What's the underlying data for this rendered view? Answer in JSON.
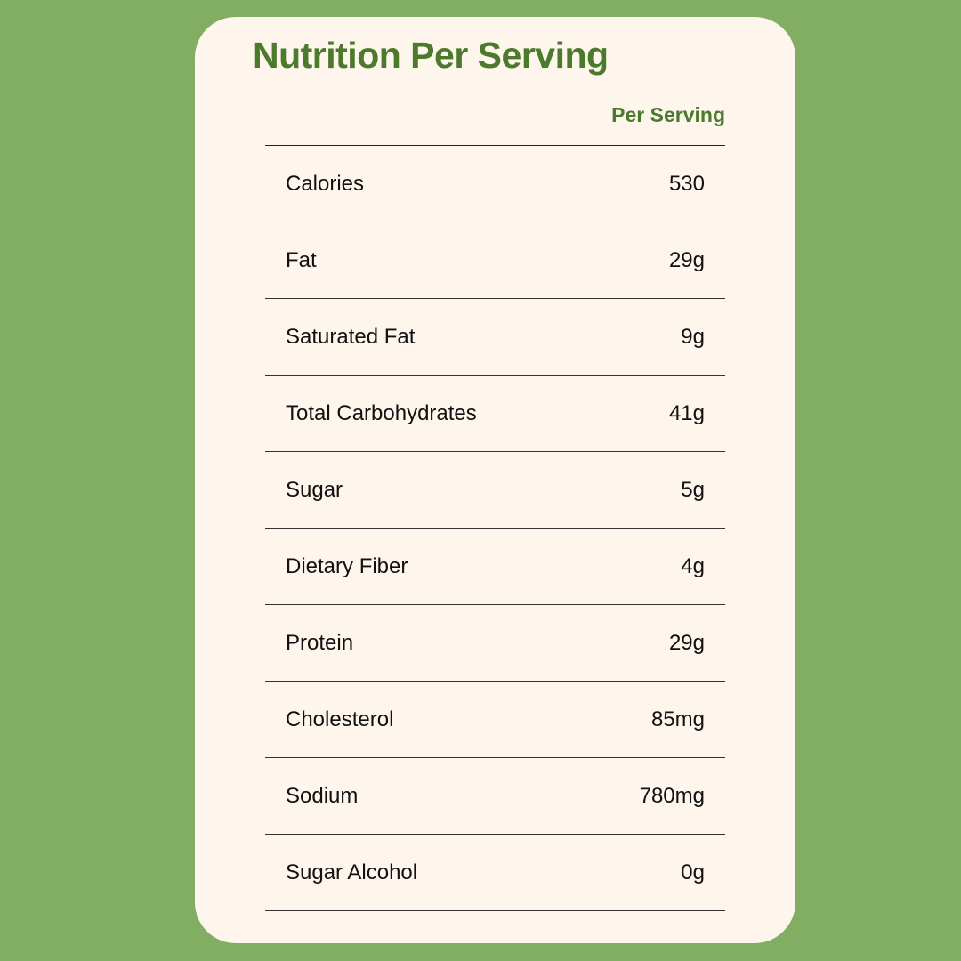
{
  "title": "Nutrition Per Serving",
  "column_header": "Per Serving",
  "rows": [
    {
      "label": "Calories",
      "value": "530"
    },
    {
      "label": "Fat",
      "value": "29g"
    },
    {
      "label": "Saturated Fat",
      "value": "9g"
    },
    {
      "label": "Total Carbohydrates",
      "value": "41g"
    },
    {
      "label": "Sugar",
      "value": "5g"
    },
    {
      "label": "Dietary Fiber",
      "value": "4g"
    },
    {
      "label": "Protein",
      "value": "29g"
    },
    {
      "label": "Cholesterol",
      "value": "85mg"
    },
    {
      "label": "Sodium",
      "value": "780mg"
    },
    {
      "label": "Sugar Alcohol",
      "value": "0g"
    }
  ],
  "colors": {
    "background": "#82ae63",
    "card": "#fef5ed",
    "accent": "#4b7a2d"
  }
}
